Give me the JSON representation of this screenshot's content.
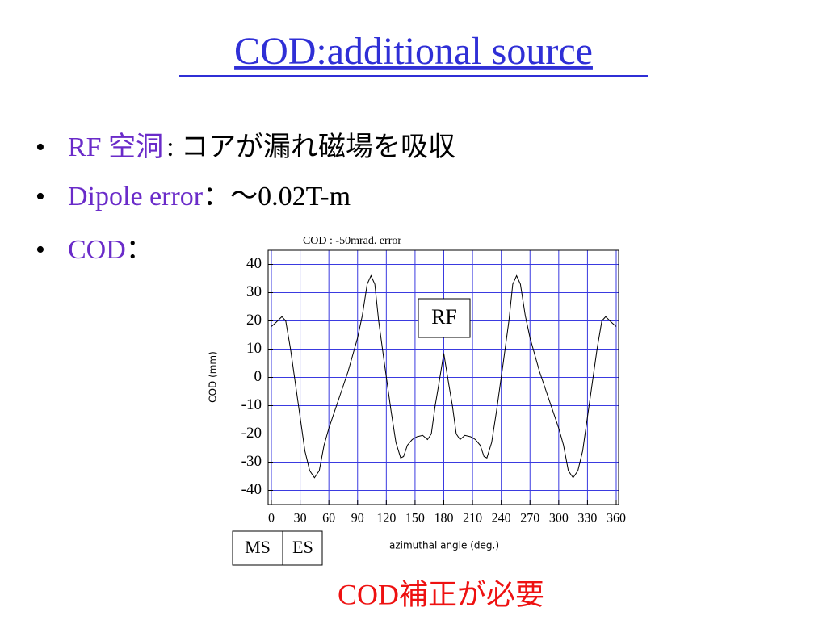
{
  "slide": {
    "title": "COD:additional source",
    "bullets": [
      {
        "label": "RF 空洞",
        "text": ": コアが漏れ磁場を吸収"
      },
      {
        "label": "Dipole error",
        "text": "：～0.02T-m"
      },
      {
        "label": "COD",
        "text": "："
      }
    ],
    "conclusion": "COD補正が必要"
  },
  "chart_data": {
    "type": "line",
    "title": "COD : -50mrad. error",
    "x_label": "azimuthal angle (deg.)",
    "y_label": "COD (mm)",
    "x": [
      0,
      5,
      11,
      15,
      20,
      25,
      30,
      35,
      40,
      45,
      50,
      55,
      60,
      70,
      80,
      90,
      95,
      100,
      104,
      108,
      112,
      118,
      125,
      130,
      135,
      138,
      142,
      147,
      152,
      158,
      163,
      167,
      171,
      175,
      180,
      185,
      189,
      193,
      197,
      202,
      208,
      213,
      218,
      222,
      225,
      230,
      235,
      242,
      248,
      252,
      256,
      260,
      265,
      270,
      280,
      290,
      300,
      305,
      310,
      315,
      320,
      325,
      330,
      335,
      340,
      345,
      349,
      355,
      360
    ],
    "series": [
      {
        "name": "COD",
        "color": "#000000",
        "values": [
          18,
          19.5,
          21.5,
          20,
          10,
          -2,
          -14,
          -26,
          -33,
          -35.5,
          -33,
          -24,
          -18,
          -8,
          2,
          14,
          22,
          33,
          36,
          33,
          20,
          5,
          -12,
          -23,
          -28.5,
          -28,
          -24,
          -22,
          -21,
          -20.5,
          -22,
          -20,
          -10,
          -2,
          8.5,
          -2,
          -10,
          -20,
          -22,
          -20.5,
          -21,
          -22,
          -24,
          -28,
          -28.5,
          -23,
          -12,
          5,
          20,
          33,
          36,
          33,
          22,
          14,
          2,
          -8,
          -18,
          -24,
          -33,
          -35.5,
          -33,
          -26,
          -14,
          -2,
          10,
          20,
          21.5,
          19.5,
          18
        ]
      }
    ],
    "xlim": [
      0,
      360
    ],
    "ylim": [
      -45,
      45
    ],
    "xticks": [
      0,
      30,
      60,
      90,
      120,
      150,
      180,
      210,
      240,
      270,
      300,
      330,
      360
    ],
    "yticks": [
      -40,
      -30,
      -20,
      -10,
      0,
      10,
      20,
      30,
      40
    ],
    "grid": true,
    "grid_color": "#3a3ae0",
    "annotations": [
      "RF",
      "MS",
      "ES"
    ]
  }
}
